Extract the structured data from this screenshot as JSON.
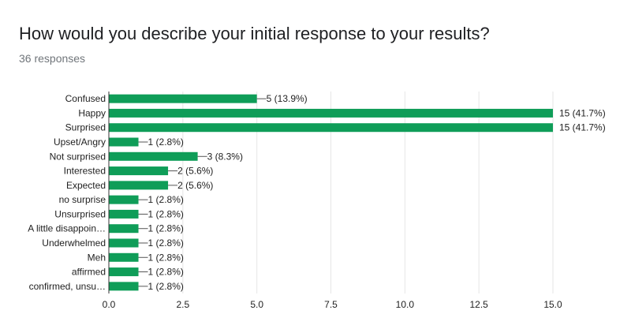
{
  "header": {
    "title": "How would you describe your initial response to your results?",
    "subtitle": "36 responses"
  },
  "chart_data": {
    "type": "bar",
    "orientation": "horizontal",
    "categories": [
      "Confused",
      "Happy",
      "Surprised",
      "Upset/Angry",
      "Not surprised",
      "Interested",
      "Expected",
      "no surprise",
      "Unsurprised",
      "A little disappoin…",
      "Underwhelmed",
      "Meh",
      "affirmed",
      "confirmed, unsu…"
    ],
    "values": [
      5,
      15,
      15,
      1,
      3,
      2,
      2,
      1,
      1,
      1,
      1,
      1,
      1,
      1
    ],
    "data_labels": [
      "5 (13.9%)",
      "15 (41.7%)",
      "15 (41.7%)",
      "1 (2.8%)",
      "3 (8.3%)",
      "2 (5.6%)",
      "2 (5.6%)",
      "1 (2.8%)",
      "1 (2.8%)",
      "1 (2.8%)",
      "1 (2.8%)",
      "1 (2.8%)",
      "1 (2.8%)",
      "1 (2.8%)"
    ],
    "xlim": [
      0,
      15
    ],
    "xticks": [
      "0.0",
      "2.5",
      "5.0",
      "7.5",
      "10.0",
      "12.5",
      "15.0"
    ],
    "grid": true,
    "bar_color": "#0f9d58",
    "grid_color": "#e6e6e6",
    "axis_color": "#333333",
    "leader_color": "#555555"
  }
}
